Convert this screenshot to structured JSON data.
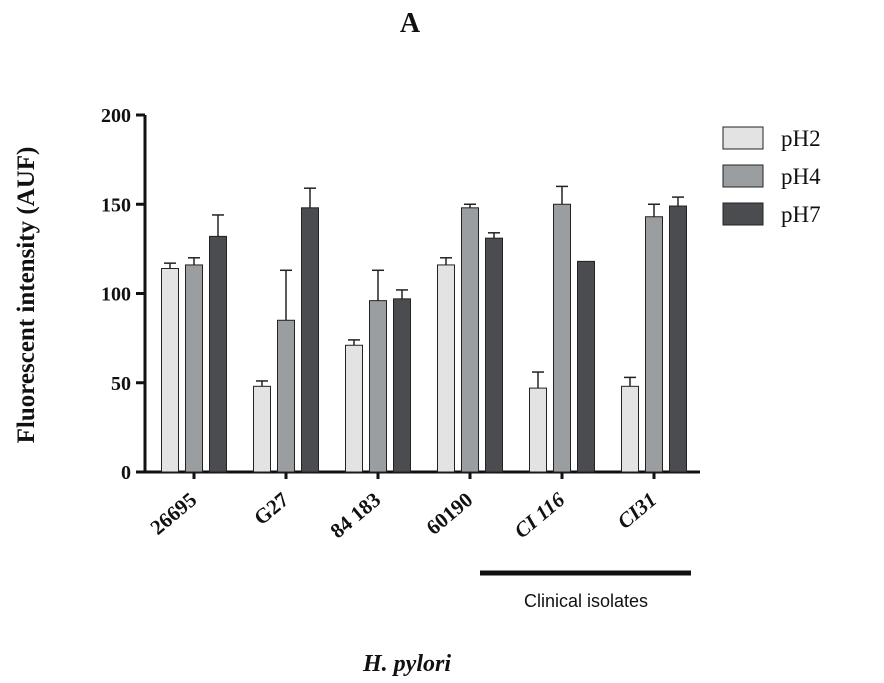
{
  "chart_data": {
    "type": "bar",
    "title": "A",
    "ylabel": "Fluorescent intensity (AUF)",
    "xlabel": "H. pylori",
    "ylim": [
      0,
      200
    ],
    "yticks": [
      0,
      50,
      100,
      150,
      200
    ],
    "categories": [
      "26695",
      "G27",
      "84 183",
      "60190",
      "CI 116",
      "CI31"
    ],
    "series": [
      {
        "name": "pH2",
        "color": "#e3e3e3",
        "values": [
          114,
          48,
          71,
          116,
          47,
          48
        ],
        "errors": [
          3,
          3,
          3,
          4,
          9,
          5
        ]
      },
      {
        "name": "pH4",
        "color": "#9a9ea1",
        "values": [
          116,
          85,
          96,
          148,
          150,
          143
        ],
        "errors": [
          4,
          28,
          17,
          2,
          10,
          7
        ]
      },
      {
        "name": "pH7",
        "color": "#4a4c4f",
        "values": [
          132,
          148,
          97,
          131,
          118,
          149
        ],
        "errors": [
          12,
          11,
          5,
          3,
          0,
          5
        ]
      }
    ],
    "bracket_label": "Clinical isolates",
    "bracket_categories": [
      "CI 116",
      "CI31"
    ],
    "legend_position": "top-right",
    "grid": false
  }
}
